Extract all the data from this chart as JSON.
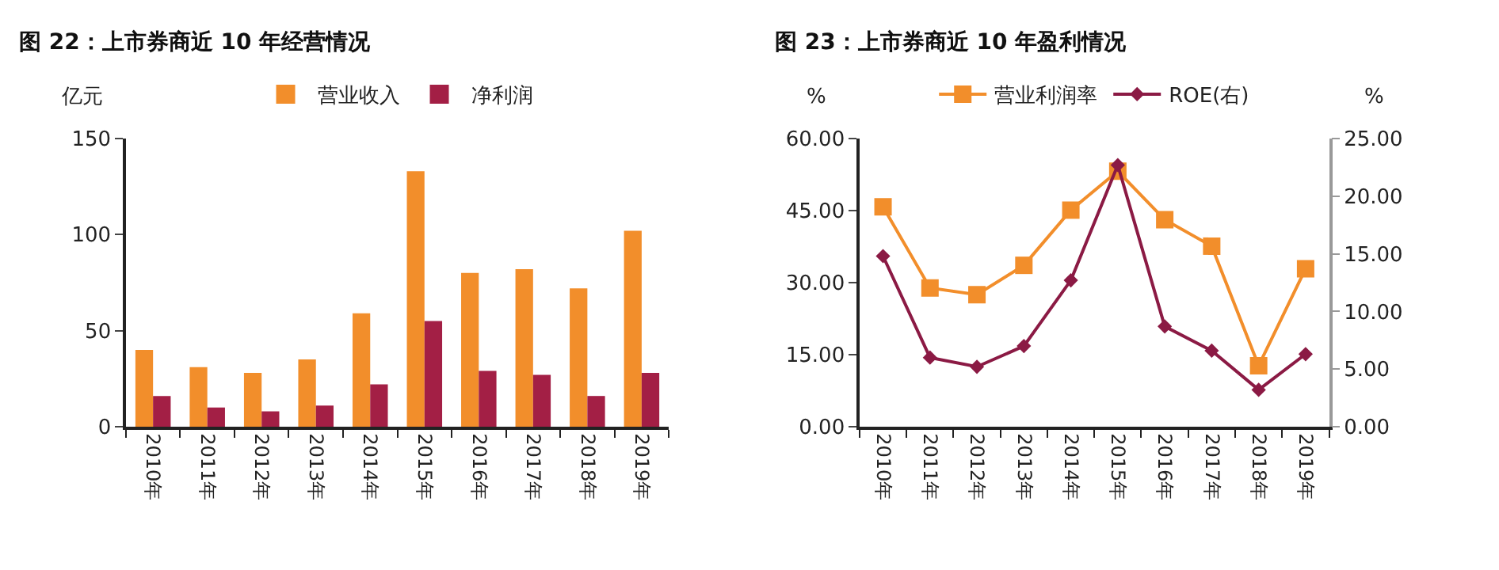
{
  "chart_data": [
    {
      "type": "bar",
      "title": "图 22：上市券商近 10 年经营情况",
      "ylabel": "亿元",
      "categories": [
        "2010年",
        "2011年",
        "2012年",
        "2013年",
        "2014年",
        "2015年",
        "2016年",
        "2017年",
        "2018年",
        "2019年"
      ],
      "series": [
        {
          "name": "营业收入",
          "color": "#f28e2b",
          "values": [
            40,
            31,
            28,
            35,
            59,
            133,
            80,
            82,
            72,
            102
          ]
        },
        {
          "name": "净利润",
          "color": "#a31f45",
          "values": [
            16,
            10,
            8,
            11,
            22,
            55,
            29,
            27,
            16,
            28
          ]
        }
      ],
      "ylim": [
        0,
        150
      ],
      "yticks": [
        0,
        50,
        100,
        150
      ],
      "legend": "top"
    },
    {
      "type": "line",
      "title": "图 23：上市券商近 10 年盈利情况",
      "ylabel": "%",
      "y2label": "%",
      "categories": [
        "2010年",
        "2011年",
        "2012年",
        "2013年",
        "2014年",
        "2015年",
        "2016年",
        "2017年",
        "2018年",
        "2019年"
      ],
      "series": [
        {
          "name": "营业利润率",
          "color": "#f28e2b",
          "marker": "square",
          "values": [
            45.8,
            28.9,
            27.5,
            33.6,
            45.1,
            53.2,
            43.1,
            37.6,
            12.7,
            32.9
          ]
        },
        {
          "name": "ROE(右)",
          "color": "#8b1a44",
          "marker": "diamond",
          "axis": "y2",
          "values": [
            14.8,
            6.0,
            5.2,
            7.0,
            12.7,
            22.7,
            8.7,
            6.6,
            3.2,
            6.3
          ]
        }
      ],
      "ylim": [
        0,
        60
      ],
      "yticks": [
        {
          "value": 0,
          "label": "0.00"
        },
        {
          "value": 15,
          "label": "15.00"
        },
        {
          "value": 30,
          "label": "30.00"
        },
        {
          "value": 45,
          "label": "45.00"
        },
        {
          "value": 60,
          "label": "60.00"
        }
      ],
      "y2lim": [
        0,
        25
      ],
      "y2ticks": [
        {
          "value": 0,
          "label": "0.00"
        },
        {
          "value": 5,
          "label": "5.00"
        },
        {
          "value": 10,
          "label": "10.00"
        },
        {
          "value": 15,
          "label": "15.00"
        },
        {
          "value": 20,
          "label": "20.00"
        },
        {
          "value": 25,
          "label": "25.00"
        }
      ],
      "legend": "top",
      "line_style": "solid"
    }
  ]
}
